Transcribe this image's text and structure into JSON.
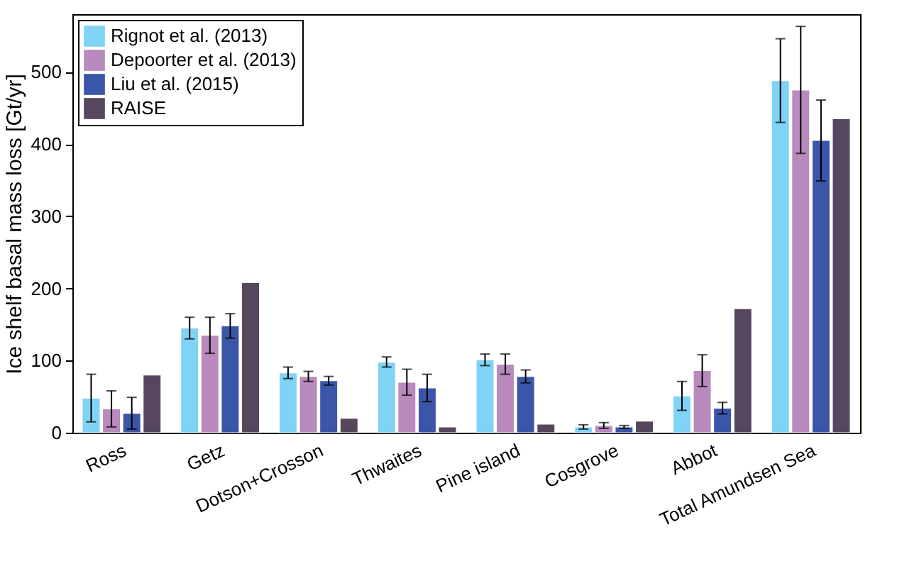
{
  "chart_data": {
    "type": "bar",
    "ylabel": "Ice shelf basal mass loss [Gt/yr]",
    "categories": [
      "Ross",
      "Getz",
      "Dotson+Crosson",
      "Thwaites",
      "Pine island",
      "Cosgrove",
      "Abbot",
      "Total Amundsen Sea"
    ],
    "series": [
      {
        "name": "Rignot et al. (2013)",
        "color": "#7fd3f5",
        "values": [
          48,
          145,
          83,
          98,
          101,
          8,
          51,
          488
        ],
        "errors": [
          33,
          15,
          8,
          7,
          8,
          3,
          20,
          58
        ]
      },
      {
        "name": "Depoorter et al. (2013)",
        "color": "#b88abd",
        "values": [
          33,
          135,
          78,
          70,
          95,
          10,
          86,
          475
        ],
        "errors": [
          25,
          25,
          7,
          18,
          14,
          4,
          22,
          88
        ]
      },
      {
        "name": "Liu et al. (2015)",
        "color": "#3b55a8",
        "values": [
          27,
          148,
          72,
          62,
          78,
          8,
          34,
          405
        ],
        "errors": [
          22,
          17,
          6,
          19,
          9,
          2,
          8,
          56
        ]
      },
      {
        "name": "RAISE",
        "color": "#56475f",
        "values": [
          80,
          208,
          20,
          8,
          12,
          16,
          172,
          435
        ]
      }
    ],
    "ylim": [
      0,
      580
    ],
    "yticks": [
      0,
      100,
      200,
      300,
      400,
      500
    ],
    "legend": "top left"
  }
}
